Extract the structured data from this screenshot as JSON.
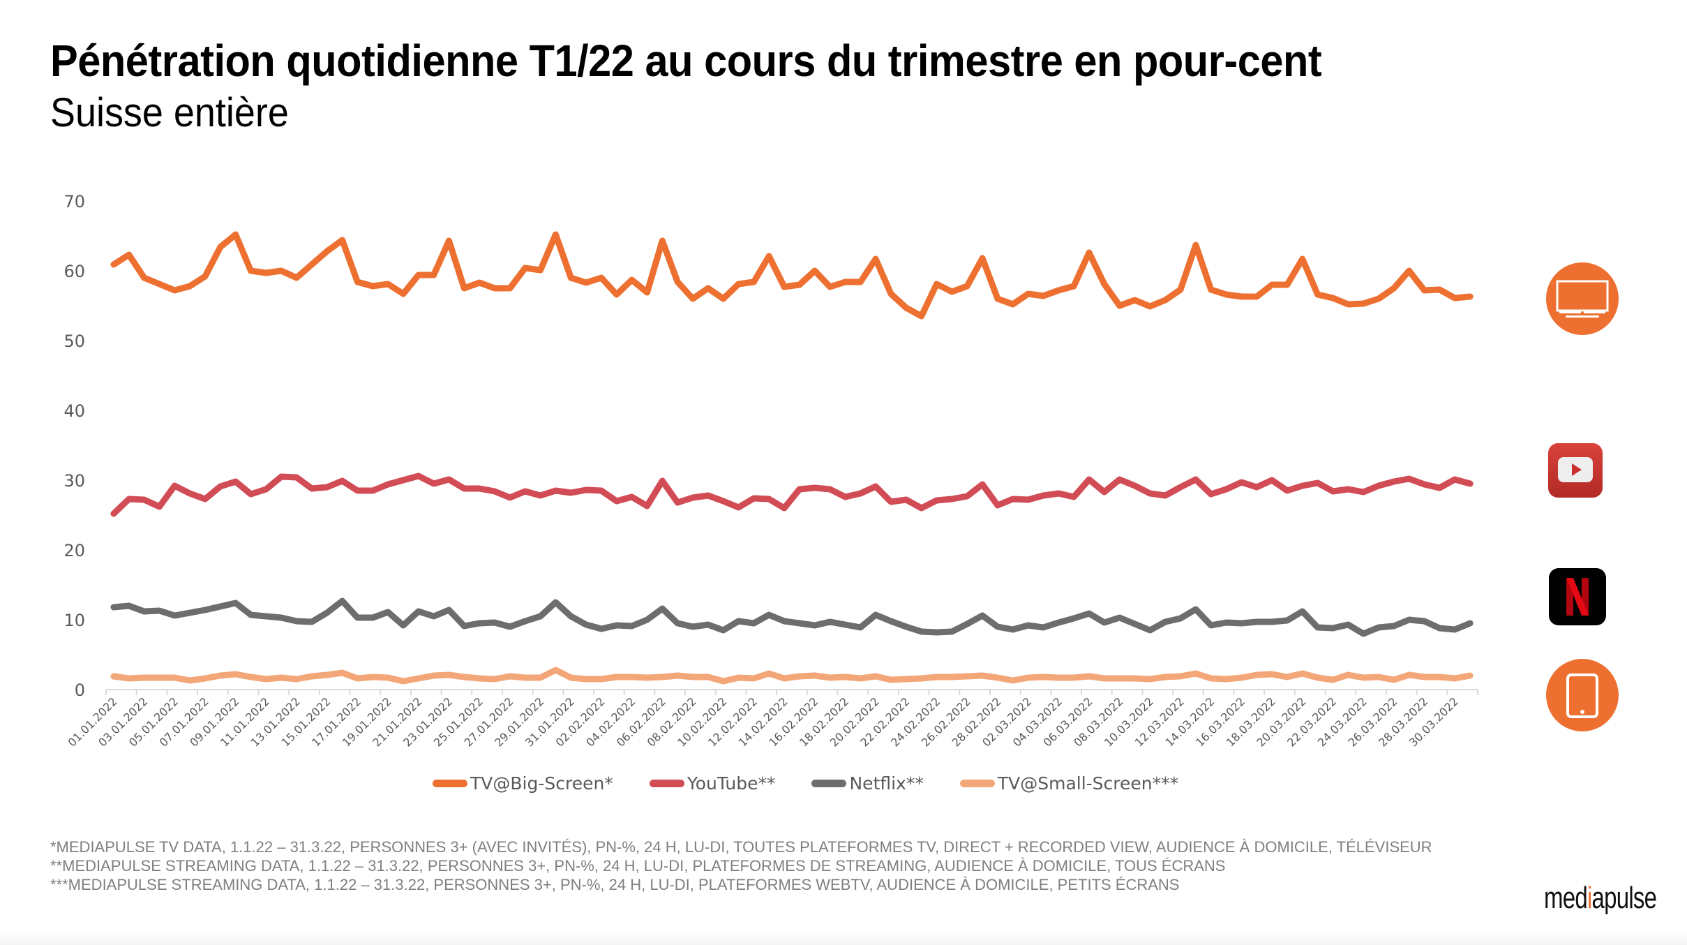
{
  "header": {
    "title": "Pénétration quotidienne T1/22 au cours du trimestre en pour-cent",
    "subtitle": "Suisse entière"
  },
  "chart_data": {
    "type": "line",
    "title": "Pénétration quotidienne T1/22 au cours du trimestre en pour-cent",
    "subtitle": "Suisse entière",
    "xlabel": "",
    "ylabel": "",
    "ylim": [
      0,
      70
    ],
    "yticks": [
      0,
      10,
      20,
      30,
      40,
      50,
      60,
      70
    ],
    "grid": false,
    "legend_position": "bottom",
    "x": [
      "01.01.2022",
      "02.01.2022",
      "03.01.2022",
      "04.01.2022",
      "05.01.2022",
      "06.01.2022",
      "07.01.2022",
      "08.01.2022",
      "09.01.2022",
      "10.01.2022",
      "11.01.2022",
      "12.01.2022",
      "13.01.2022",
      "14.01.2022",
      "15.01.2022",
      "16.01.2022",
      "17.01.2022",
      "18.01.2022",
      "19.01.2022",
      "20.01.2022",
      "21.01.2022",
      "22.01.2022",
      "23.01.2022",
      "24.01.2022",
      "25.01.2022",
      "26.01.2022",
      "27.01.2022",
      "28.01.2022",
      "29.01.2022",
      "30.01.2022",
      "31.01.2022",
      "01.02.2022",
      "02.02.2022",
      "03.02.2022",
      "04.02.2022",
      "05.02.2022",
      "06.02.2022",
      "07.02.2022",
      "08.02.2022",
      "09.02.2022",
      "10.02.2022",
      "11.02.2022",
      "12.02.2022",
      "13.02.2022",
      "14.02.2022",
      "15.02.2022",
      "16.02.2022",
      "17.02.2022",
      "18.02.2022",
      "19.02.2022",
      "20.02.2022",
      "21.02.2022",
      "22.02.2022",
      "23.02.2022",
      "24.02.2022",
      "25.02.2022",
      "26.02.2022",
      "27.02.2022",
      "28.02.2022",
      "01.03.2022",
      "02.03.2022",
      "03.03.2022",
      "04.03.2022",
      "05.03.2022",
      "06.03.2022",
      "07.03.2022",
      "08.03.2022",
      "09.03.2022",
      "10.03.2022",
      "11.03.2022",
      "12.03.2022",
      "13.03.2022",
      "14.03.2022",
      "15.03.2022",
      "16.03.2022",
      "17.03.2022",
      "18.03.2022",
      "19.03.2022",
      "20.03.2022",
      "21.03.2022",
      "22.03.2022",
      "23.03.2022",
      "24.03.2022",
      "25.03.2022",
      "26.03.2022",
      "27.03.2022",
      "28.03.2022",
      "29.03.2022",
      "30.03.2022",
      "31.03.2022"
    ],
    "tick_labels": [
      "01.01.2022",
      "03.01.2022",
      "05.01.2022",
      "07.01.2022",
      "09.01.2022",
      "11.01.2022",
      "13.01.2022",
      "15.01.2022",
      "17.01.2022",
      "19.01.2022",
      "21.01.2022",
      "23.01.2022",
      "25.01.2022",
      "27.01.2022",
      "29.01.2022",
      "31.01.2022",
      "02.02.2022",
      "04.02.2022",
      "06.02.2022",
      "08.02.2022",
      "10.02.2022",
      "12.02.2022",
      "14.02.2022",
      "16.02.2022",
      "18.02.2022",
      "20.02.2022",
      "22.02.2022",
      "24.02.2022",
      "26.02.2022",
      "28.02.2022",
      "02.03.2022",
      "04.03.2022",
      "06.03.2022",
      "08.03.2022",
      "10.03.2022",
      "12.03.2022",
      "14.03.2022",
      "16.03.2022",
      "18.03.2022",
      "20.03.2022",
      "22.03.2022",
      "24.03.2022",
      "26.03.2022",
      "28.03.2022",
      "30.03.2022"
    ],
    "series": [
      {
        "name": "TV@Big-Screen*",
        "color": "#ed7031",
        "values": [
          60.9,
          62.3,
          59.0,
          58.1,
          57.2,
          57.8,
          59.2,
          63.4,
          65.2,
          60.0,
          59.7,
          60.0,
          59.0,
          60.9,
          62.8,
          64.4,
          58.4,
          57.8,
          58.1,
          56.7,
          59.4,
          59.4,
          64.3,
          57.5,
          58.3,
          57.5,
          57.5,
          60.4,
          60.1,
          65.2,
          59.0,
          58.3,
          59.0,
          56.6,
          58.7,
          56.9,
          64.3,
          58.4,
          56.0,
          57.5,
          56.0,
          58.1,
          58.4,
          62.1,
          57.7,
          58.0,
          60.0,
          57.7,
          58.4,
          58.4,
          61.7,
          56.7,
          54.7,
          53.5,
          58.1,
          57.0,
          57.8,
          61.8,
          56.0,
          55.2,
          56.7,
          56.4,
          57.2,
          57.8,
          62.6,
          58.1,
          55.0,
          55.8,
          54.9,
          55.8,
          57.3,
          63.7,
          57.3,
          56.6,
          56.3,
          56.3,
          58.0,
          58.0,
          61.7,
          56.6,
          56.1,
          55.2,
          55.3,
          56.0,
          57.5,
          60.0,
          57.2,
          57.3,
          56.1,
          56.3
        ]
      },
      {
        "name": "YouTube**",
        "color": "#d24c55",
        "values": [
          25.2,
          27.3,
          27.2,
          26.2,
          29.2,
          28.1,
          27.3,
          29.1,
          29.8,
          28.0,
          28.7,
          30.5,
          30.4,
          28.8,
          29.0,
          29.9,
          28.5,
          28.5,
          29.4,
          30.0,
          30.6,
          29.5,
          30.1,
          28.8,
          28.8,
          28.4,
          27.5,
          28.4,
          27.8,
          28.5,
          28.2,
          28.6,
          28.5,
          27.0,
          27.6,
          26.3,
          29.9,
          26.8,
          27.5,
          27.8,
          27.0,
          26.1,
          27.4,
          27.3,
          26.0,
          28.7,
          28.9,
          28.7,
          27.6,
          28.1,
          29.1,
          26.9,
          27.2,
          26.0,
          27.1,
          27.3,
          27.7,
          29.4,
          26.4,
          27.3,
          27.2,
          27.8,
          28.1,
          27.6,
          30.1,
          28.3,
          30.1,
          29.2,
          28.1,
          27.8,
          29.0,
          30.1,
          28.0,
          28.7,
          29.7,
          29.0,
          30.0,
          28.5,
          29.2,
          29.6,
          28.4,
          28.7,
          28.3,
          29.2,
          29.8,
          30.2,
          29.4,
          28.9,
          30.1,
          29.5
        ]
      },
      {
        "name": "Netflix**",
        "color": "#6d6d6d",
        "values": [
          11.8,
          12.0,
          11.2,
          11.3,
          10.6,
          11.0,
          11.4,
          11.9,
          12.4,
          10.7,
          10.5,
          10.3,
          9.8,
          9.7,
          11.0,
          12.7,
          10.3,
          10.3,
          11.1,
          9.2,
          11.2,
          10.5,
          11.4,
          9.1,
          9.5,
          9.6,
          9.0,
          9.8,
          10.5,
          12.5,
          10.5,
          9.3,
          8.7,
          9.2,
          9.1,
          10.0,
          11.6,
          9.5,
          9.0,
          9.3,
          8.5,
          9.8,
          9.5,
          10.7,
          9.8,
          9.5,
          9.2,
          9.7,
          9.3,
          8.9,
          10.7,
          9.8,
          9.0,
          8.3,
          8.2,
          8.3,
          9.4,
          10.6,
          9.0,
          8.6,
          9.2,
          8.9,
          9.6,
          10.2,
          10.9,
          9.6,
          10.3,
          9.4,
          8.5,
          9.7,
          10.2,
          11.5,
          9.2,
          9.6,
          9.5,
          9.7,
          9.7,
          9.9,
          11.2,
          8.9,
          8.8,
          9.3,
          8.0,
          8.9,
          9.1,
          10.0,
          9.8,
          8.8,
          8.6,
          9.5
        ]
      },
      {
        "name": "TV@Small-Screen***",
        "color": "#f3a779",
        "values": [
          1.9,
          1.6,
          1.7,
          1.7,
          1.7,
          1.3,
          1.6,
          2.0,
          2.2,
          1.8,
          1.5,
          1.7,
          1.5,
          1.9,
          2.1,
          2.4,
          1.6,
          1.8,
          1.7,
          1.2,
          1.6,
          2.0,
          2.1,
          1.8,
          1.6,
          1.5,
          1.9,
          1.7,
          1.7,
          2.8,
          1.7,
          1.5,
          1.5,
          1.8,
          1.8,
          1.7,
          1.8,
          2.0,
          1.8,
          1.8,
          1.2,
          1.7,
          1.6,
          2.3,
          1.6,
          1.9,
          2.0,
          1.7,
          1.8,
          1.6,
          1.9,
          1.4,
          1.5,
          1.6,
          1.8,
          1.8,
          1.9,
          2.0,
          1.7,
          1.3,
          1.7,
          1.8,
          1.7,
          1.7,
          1.9,
          1.6,
          1.6,
          1.6,
          1.5,
          1.8,
          1.9,
          2.3,
          1.6,
          1.5,
          1.7,
          2.1,
          2.2,
          1.8,
          2.3,
          1.7,
          1.4,
          2.1,
          1.7,
          1.8,
          1.4,
          2.1,
          1.8,
          1.8,
          1.6,
          2.0
        ]
      }
    ]
  },
  "legend": [
    {
      "label": "TV@Big-Screen*",
      "color": "#ed7031"
    },
    {
      "label": "YouTube**",
      "color": "#d24c55"
    },
    {
      "label": "Netflix**",
      "color": "#6d6d6d"
    },
    {
      "label": "TV@Small-Screen***",
      "color": "#f3a779"
    }
  ],
  "icons": {
    "tv": "tv-icon",
    "youtube": "youtube-icon",
    "netflix": "netflix-icon",
    "tablet": "tablet-icon"
  },
  "footnotes": [
    "*MEDIAPULSE TV DATA, 1.1.22 – 31.3.22, PERSONNES 3+ (AVEC INVITÉS), PN-%, 24 H, LU-DI, TOUTES PLATEFORMES TV, DIRECT + RECORDED VIEW, AUDIENCE À DOMICILE, TÉLÉVISEUR",
    "**MEDIAPULSE STREAMING DATA, 1.1.22 – 31.3.22, PERSONNES 3+, PN-%, 24 H, LU-DI, PLATEFORMES DE STREAMING, AUDIENCE À DOMICILE, TOUS ÉCRANS",
    "***MEDIAPULSE STREAMING DATA, 1.1.22 – 31.3.22, PERSONNES 3+, PN-%, 24 H, LU-DI, PLATEFORMES WEBTV, AUDIENCE À DOMICILE, PETITS ÉCRANS"
  ],
  "logo": {
    "part1": "med",
    "accent": "i",
    "part2": "apulse"
  }
}
